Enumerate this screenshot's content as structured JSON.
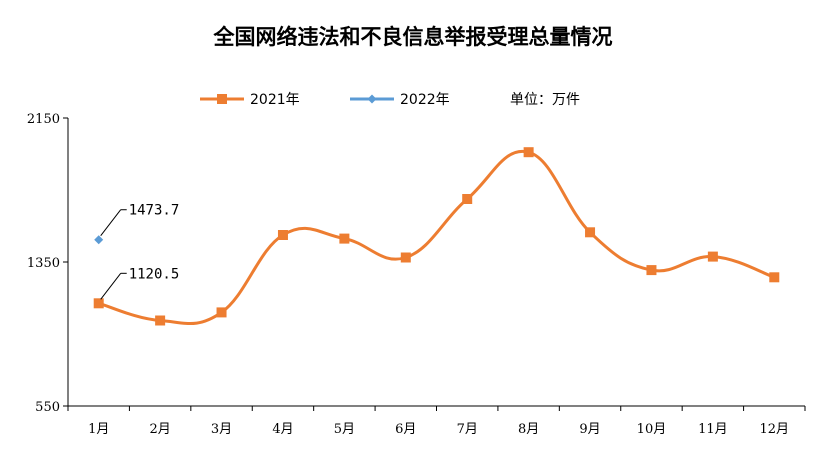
{
  "chart_data": {
    "type": "line",
    "title": "全国网络违法和不良信息举报受理总量情况",
    "unit_note": "单位：万件",
    "categories": [
      "1月",
      "2月",
      "3月",
      "4月",
      "5月",
      "6月",
      "7月",
      "8月",
      "9月",
      "10月",
      "11月",
      "12月"
    ],
    "series": [
      {
        "name": "2021年",
        "color": "#ED7D31",
        "marker": "square",
        "values": [
          1120.5,
          1025,
          1070,
          1500,
          1480,
          1375,
          1700,
          1960,
          1515,
          1305,
          1380,
          1265
        ]
      },
      {
        "name": "2022年",
        "color": "#5B9BD5",
        "marker": "diamond",
        "values": [
          1473.7,
          null,
          null,
          null,
          null,
          null,
          null,
          null,
          null,
          null,
          null,
          null
        ]
      }
    ],
    "yticks": [
      550,
      1350,
      2150
    ],
    "ylim": [
      550,
      2150
    ],
    "grid": false,
    "legend": "top-center",
    "annotations": [
      {
        "text": "1473.7",
        "series": 1,
        "index": 0
      },
      {
        "text": "1120.5",
        "series": 0,
        "index": 0
      }
    ]
  }
}
